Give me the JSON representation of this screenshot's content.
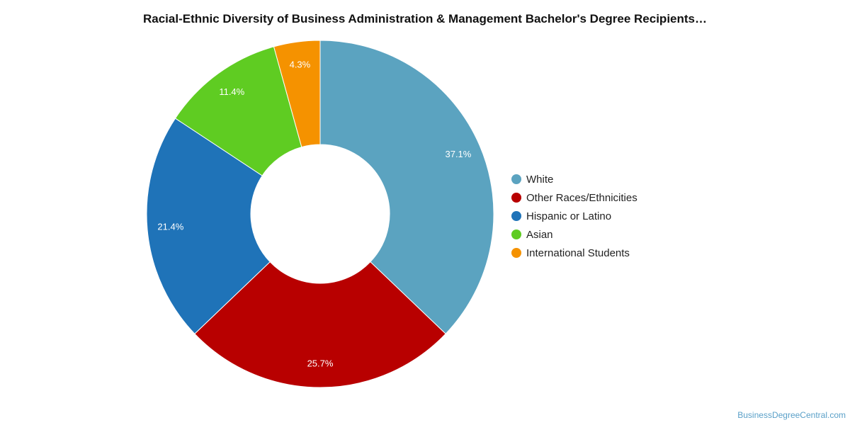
{
  "chart_data": {
    "type": "pie",
    "title": "Racial-Ethnic Diversity of Business Administration & Management Bachelor's Degree Recipients…",
    "labels": [
      "White",
      "Other Races/Ethnicities",
      "Hispanic or Latino",
      "Asian",
      "International Students"
    ],
    "values": [
      37.1,
      25.7,
      21.4,
      11.4,
      4.3
    ],
    "value_labels": [
      "37.1%",
      "25.7%",
      "21.4%",
      "11.4%",
      "4.3%"
    ],
    "colors": [
      "#5ba3c0",
      "#b80000",
      "#1f73b8",
      "#5fcc22",
      "#f59200"
    ],
    "donut": true,
    "legend": "right"
  },
  "source_credit": "BusinessDegreeCentral.com"
}
